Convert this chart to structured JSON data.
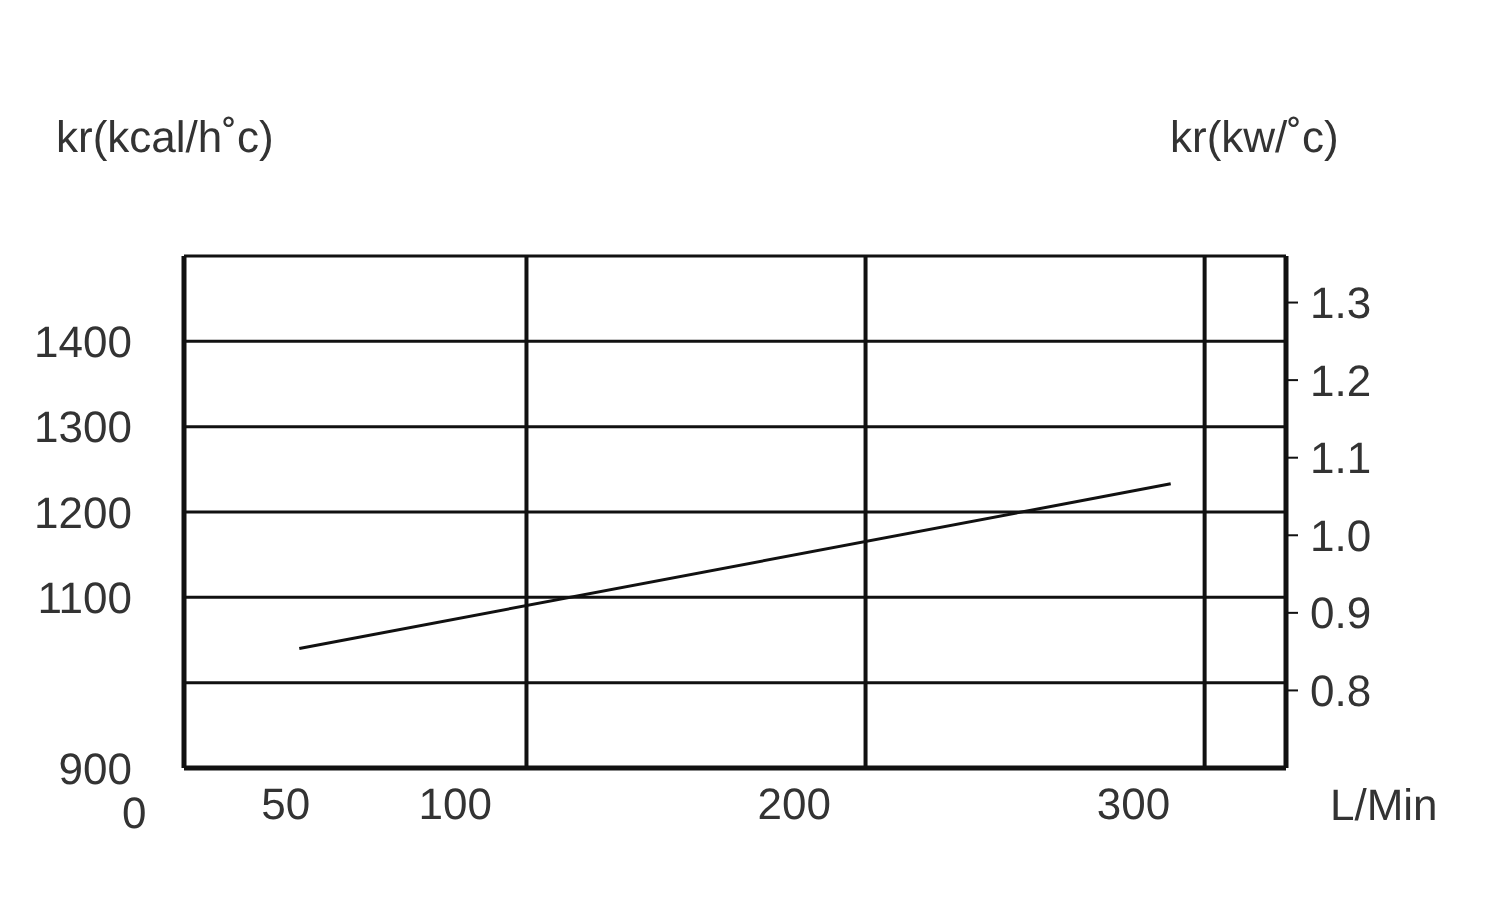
{
  "chart_data": {
    "type": "line",
    "xlabel": "L/Min",
    "ylabel": "kr(kcal/h˚c)",
    "y2label": "kr(kw/˚c)",
    "x": [
      54,
      311
    ],
    "series": [
      {
        "color": "#111111",
        "values": [
          1040,
          1233
        ]
      }
    ],
    "xlim": [
      20,
      345
    ],
    "xticks": [
      50,
      100,
      {
        "value": 121,
        "label": null
      },
      200,
      {
        "value": 221,
        "label": null
      },
      300,
      {
        "value": 321,
        "label": null
      }
    ],
    "ylim": [
      900,
      1500
    ],
    "yticks": [
      900,
      {
        "value": 1000,
        "label": null
      },
      1100,
      1200,
      1300,
      1400
    ],
    "y2lim": [
      0.7,
      1.36
    ],
    "y2ticks": [
      0.8,
      0.9,
      {
        "value": 1,
        "label": "1.0"
      },
      1.1,
      1.2,
      1.3
    ],
    "annotations": [
      "0"
    ],
    "grid": true,
    "marker": "none",
    "line_style": "solid"
  }
}
